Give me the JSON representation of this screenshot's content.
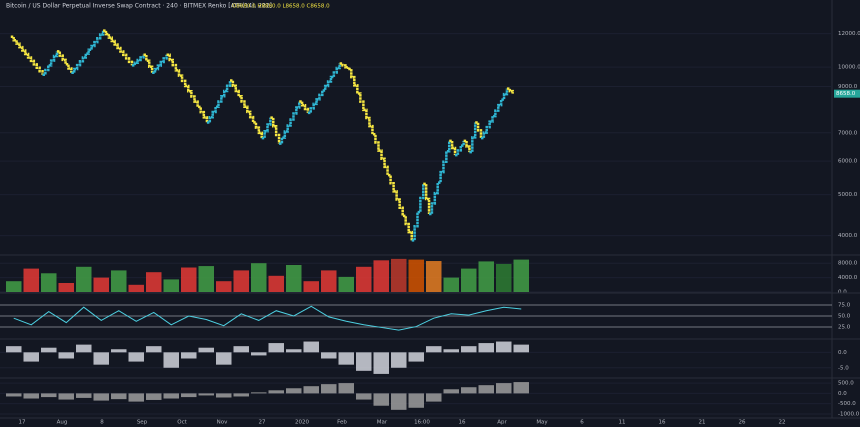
{
  "chart_data": {
    "type": "renko",
    "title": "Bitcoin / US Dollar Perpetual Inverse Swap Contract · 240 · BITMEX  Renko [ATR(14), 222]",
    "ohlc_label": "O8880.0 H8880.0 L8658.0 C8658.0",
    "last_price_label": "8658.0",
    "last_price": 8658,
    "up_color": "#2fb5d2",
    "down_color": "#f5e642",
    "log_scale": true,
    "x": [
      0,
      11,
      16,
      21,
      32,
      42,
      46,
      49,
      54,
      68,
      76,
      87,
      90,
      93,
      100,
      103,
      114,
      117,
      139,
      143,
      145,
      152,
      154,
      157,
      159,
      161,
      163,
      172,
      174
    ],
    "series": [
      {
        "values": [
          11800,
          9600,
          10900,
          9700,
          12200,
          10100,
          10700,
          9700,
          10700,
          7400,
          9300,
          6800,
          7600,
          6600,
          8300,
          7800,
          10200,
          9900,
          3900,
          5300,
          4500,
          6700,
          6200,
          6700,
          6300,
          7400,
          6800,
          8900,
          8658
        ]
      }
    ],
    "xlim": [
      -2,
      180
    ],
    "ylim": [
      3700,
      13500
    ],
    "yticks": [
      {
        "value": 12000,
        "label": "12000.0"
      },
      {
        "value": 10000,
        "label": "10000.0"
      },
      {
        "value": 9000,
        "label": "9000.0"
      },
      {
        "value": 7000,
        "label": "7000.0"
      },
      {
        "value": 6000,
        "label": "6000.0"
      },
      {
        "value": 5000,
        "label": "5000.0"
      },
      {
        "value": 4000,
        "label": "4000.0"
      }
    ],
    "x_labels": [
      "17",
      "Aug",
      "8",
      "Sep",
      "Oct",
      "Nov",
      "27",
      "2020",
      "Feb",
      "Mar",
      "16:00",
      "16",
      "Apr",
      "May",
      "6",
      "11",
      "16",
      "21",
      "26",
      "22"
    ],
    "panes": [
      {
        "type": "bar",
        "ylim": [
          0,
          10000
        ],
        "yticks": [
          {
            "value": 8000,
            "label": "8000.0"
          },
          {
            "value": 4000,
            "label": "4000.0"
          },
          {
            "value": 0,
            "label": "0.0"
          }
        ],
        "values": [
          3000,
          6500,
          5200,
          2500,
          7000,
          4000,
          6000,
          2000,
          5500,
          3500,
          6800,
          7200,
          3000,
          6000,
          8000,
          4500,
          7500,
          3000,
          6000,
          4200,
          7000,
          8800,
          9200,
          9000,
          8600,
          4000,
          6500,
          8500,
          7800,
          9000
        ],
        "colors": [
          "#43a047",
          "#e53935",
          "#43a047",
          "#e53935",
          "#43a047",
          "#e53935",
          "#43a047",
          "#e53935",
          "#e53935",
          "#43a047",
          "#e53935",
          "#43a047",
          "#e53935",
          "#e53935",
          "#43a047",
          "#e53935",
          "#43a047",
          "#e53935",
          "#e53935",
          "#43a047",
          "#e53935",
          "#e53935",
          "#c0392b",
          "#d35400",
          "#e67e22",
          "#43a047",
          "#43a047",
          "#43a047",
          "#2e7d32",
          "#43a047"
        ]
      },
      {
        "type": "line",
        "ylim": [
          0,
          100
        ],
        "yticks": [
          {
            "value": 75,
            "label": "75.0"
          },
          {
            "value": 50,
            "label": "50.0"
          },
          {
            "value": 25,
            "label": "25.0"
          }
        ],
        "values": [
          45,
          30,
          60,
          35,
          70,
          40,
          62,
          38,
          58,
          30,
          50,
          42,
          28,
          55,
          40,
          62,
          50,
          72,
          48,
          38,
          30,
          24,
          18,
          26,
          45,
          55,
          52,
          62,
          70,
          66
        ],
        "color": "#4dd0e1"
      },
      {
        "type": "bar",
        "ylim": [
          -8,
          4
        ],
        "yticks": [
          {
            "value": 0,
            "label": "0.0"
          },
          {
            "value": -5,
            "label": "-5.0"
          }
        ],
        "values": [
          2,
          -3,
          1.5,
          -2,
          2.5,
          -4,
          1,
          -3,
          2,
          -5,
          -2,
          1.5,
          -4,
          2,
          -1,
          3,
          1,
          3.5,
          -2,
          -4,
          -6,
          -7,
          -5,
          -3,
          2,
          1,
          2,
          3,
          3.5,
          2.5
        ],
        "color": "#d1d4dc"
      },
      {
        "type": "bar",
        "ylim": [
          -1100,
          700
        ],
        "yticks": [
          {
            "value": 500,
            "label": "500.0"
          },
          {
            "value": 0,
            "label": "0.0"
          },
          {
            "value": -500,
            "label": "-500.0"
          },
          {
            "value": -1000,
            "label": "-1000.0"
          }
        ],
        "values": [
          -150,
          -250,
          -180,
          -300,
          -220,
          -350,
          -280,
          -400,
          -320,
          -250,
          -180,
          -100,
          -200,
          -150,
          50,
          150,
          250,
          350,
          450,
          500,
          -300,
          -600,
          -800,
          -700,
          -400,
          200,
          300,
          400,
          500,
          550
        ],
        "color": "#9e9e9e"
      }
    ]
  }
}
